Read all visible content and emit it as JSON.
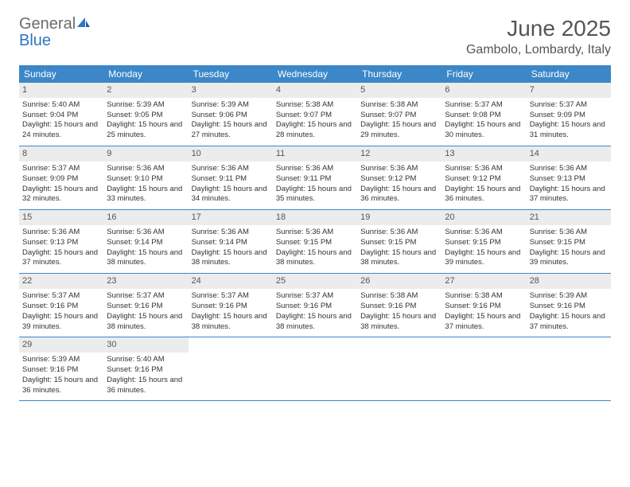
{
  "brand": {
    "text_gray": "General",
    "text_blue": "Blue",
    "gray_color": "#6b6b6b",
    "blue_color": "#2a77c4",
    "icon_color": "#2a77c4"
  },
  "title": "June 2025",
  "location": "Gambolo, Lombardy, Italy",
  "style": {
    "header_bg": "#3b87c8",
    "header_text": "#ffffff",
    "daynum_bg": "#ececec",
    "border_color": "#3b87c8",
    "body_text": "#333333",
    "page_bg": "#ffffff",
    "title_fontsize": 28,
    "location_fontsize": 16,
    "weekday_fontsize": 12,
    "daynum_fontsize": 11,
    "body_fontsize": 9.5
  },
  "weekdays": [
    "Sunday",
    "Monday",
    "Tuesday",
    "Wednesday",
    "Thursday",
    "Friday",
    "Saturday"
  ],
  "weeks": [
    [
      {
        "n": "1",
        "sunrise": "Sunrise: 5:40 AM",
        "sunset": "Sunset: 9:04 PM",
        "daylight": "Daylight: 15 hours and 24 minutes."
      },
      {
        "n": "2",
        "sunrise": "Sunrise: 5:39 AM",
        "sunset": "Sunset: 9:05 PM",
        "daylight": "Daylight: 15 hours and 25 minutes."
      },
      {
        "n": "3",
        "sunrise": "Sunrise: 5:39 AM",
        "sunset": "Sunset: 9:06 PM",
        "daylight": "Daylight: 15 hours and 27 minutes."
      },
      {
        "n": "4",
        "sunrise": "Sunrise: 5:38 AM",
        "sunset": "Sunset: 9:07 PM",
        "daylight": "Daylight: 15 hours and 28 minutes."
      },
      {
        "n": "5",
        "sunrise": "Sunrise: 5:38 AM",
        "sunset": "Sunset: 9:07 PM",
        "daylight": "Daylight: 15 hours and 29 minutes."
      },
      {
        "n": "6",
        "sunrise": "Sunrise: 5:37 AM",
        "sunset": "Sunset: 9:08 PM",
        "daylight": "Daylight: 15 hours and 30 minutes."
      },
      {
        "n": "7",
        "sunrise": "Sunrise: 5:37 AM",
        "sunset": "Sunset: 9:09 PM",
        "daylight": "Daylight: 15 hours and 31 minutes."
      }
    ],
    [
      {
        "n": "8",
        "sunrise": "Sunrise: 5:37 AM",
        "sunset": "Sunset: 9:09 PM",
        "daylight": "Daylight: 15 hours and 32 minutes."
      },
      {
        "n": "9",
        "sunrise": "Sunrise: 5:36 AM",
        "sunset": "Sunset: 9:10 PM",
        "daylight": "Daylight: 15 hours and 33 minutes."
      },
      {
        "n": "10",
        "sunrise": "Sunrise: 5:36 AM",
        "sunset": "Sunset: 9:11 PM",
        "daylight": "Daylight: 15 hours and 34 minutes."
      },
      {
        "n": "11",
        "sunrise": "Sunrise: 5:36 AM",
        "sunset": "Sunset: 9:11 PM",
        "daylight": "Daylight: 15 hours and 35 minutes."
      },
      {
        "n": "12",
        "sunrise": "Sunrise: 5:36 AM",
        "sunset": "Sunset: 9:12 PM",
        "daylight": "Daylight: 15 hours and 36 minutes."
      },
      {
        "n": "13",
        "sunrise": "Sunrise: 5:36 AM",
        "sunset": "Sunset: 9:12 PM",
        "daylight": "Daylight: 15 hours and 36 minutes."
      },
      {
        "n": "14",
        "sunrise": "Sunrise: 5:36 AM",
        "sunset": "Sunset: 9:13 PM",
        "daylight": "Daylight: 15 hours and 37 minutes."
      }
    ],
    [
      {
        "n": "15",
        "sunrise": "Sunrise: 5:36 AM",
        "sunset": "Sunset: 9:13 PM",
        "daylight": "Daylight: 15 hours and 37 minutes."
      },
      {
        "n": "16",
        "sunrise": "Sunrise: 5:36 AM",
        "sunset": "Sunset: 9:14 PM",
        "daylight": "Daylight: 15 hours and 38 minutes."
      },
      {
        "n": "17",
        "sunrise": "Sunrise: 5:36 AM",
        "sunset": "Sunset: 9:14 PM",
        "daylight": "Daylight: 15 hours and 38 minutes."
      },
      {
        "n": "18",
        "sunrise": "Sunrise: 5:36 AM",
        "sunset": "Sunset: 9:15 PM",
        "daylight": "Daylight: 15 hours and 38 minutes."
      },
      {
        "n": "19",
        "sunrise": "Sunrise: 5:36 AM",
        "sunset": "Sunset: 9:15 PM",
        "daylight": "Daylight: 15 hours and 38 minutes."
      },
      {
        "n": "20",
        "sunrise": "Sunrise: 5:36 AM",
        "sunset": "Sunset: 9:15 PM",
        "daylight": "Daylight: 15 hours and 39 minutes."
      },
      {
        "n": "21",
        "sunrise": "Sunrise: 5:36 AM",
        "sunset": "Sunset: 9:15 PM",
        "daylight": "Daylight: 15 hours and 39 minutes."
      }
    ],
    [
      {
        "n": "22",
        "sunrise": "Sunrise: 5:37 AM",
        "sunset": "Sunset: 9:16 PM",
        "daylight": "Daylight: 15 hours and 39 minutes."
      },
      {
        "n": "23",
        "sunrise": "Sunrise: 5:37 AM",
        "sunset": "Sunset: 9:16 PM",
        "daylight": "Daylight: 15 hours and 38 minutes."
      },
      {
        "n": "24",
        "sunrise": "Sunrise: 5:37 AM",
        "sunset": "Sunset: 9:16 PM",
        "daylight": "Daylight: 15 hours and 38 minutes."
      },
      {
        "n": "25",
        "sunrise": "Sunrise: 5:37 AM",
        "sunset": "Sunset: 9:16 PM",
        "daylight": "Daylight: 15 hours and 38 minutes."
      },
      {
        "n": "26",
        "sunrise": "Sunrise: 5:38 AM",
        "sunset": "Sunset: 9:16 PM",
        "daylight": "Daylight: 15 hours and 38 minutes."
      },
      {
        "n": "27",
        "sunrise": "Sunrise: 5:38 AM",
        "sunset": "Sunset: 9:16 PM",
        "daylight": "Daylight: 15 hours and 37 minutes."
      },
      {
        "n": "28",
        "sunrise": "Sunrise: 5:39 AM",
        "sunset": "Sunset: 9:16 PM",
        "daylight": "Daylight: 15 hours and 37 minutes."
      }
    ],
    [
      {
        "n": "29",
        "sunrise": "Sunrise: 5:39 AM",
        "sunset": "Sunset: 9:16 PM",
        "daylight": "Daylight: 15 hours and 36 minutes."
      },
      {
        "n": "30",
        "sunrise": "Sunrise: 5:40 AM",
        "sunset": "Sunset: 9:16 PM",
        "daylight": "Daylight: 15 hours and 36 minutes."
      },
      null,
      null,
      null,
      null,
      null
    ]
  ]
}
